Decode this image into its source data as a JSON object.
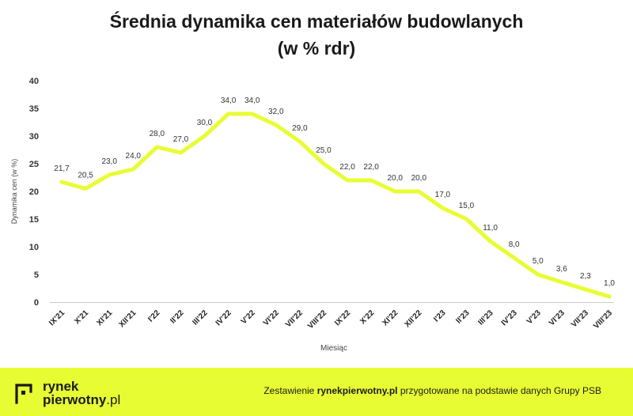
{
  "title_line1": "Średnia dynamika cen materiałów budowlanych",
  "title_line2": "(w % rdr)",
  "chart_data": {
    "type": "line",
    "title": "Średnia dynamika cen materiałów budowlanych (w % rdr)",
    "xlabel": "Miesiąc",
    "ylabel": "Dynamika cen (w %)",
    "ylim": [
      0,
      40
    ],
    "yticks": [
      0,
      5,
      10,
      15,
      20,
      25,
      30,
      35,
      40
    ],
    "grid": false,
    "legend": "none",
    "categories": [
      "IX'21",
      "X'21",
      "XI'21",
      "XII'21",
      "I'22",
      "II'22",
      "III'22",
      "IV'22",
      "V'22",
      "VI'22",
      "VII'22",
      "VIII'22",
      "IX'22",
      "X'22",
      "XI'22",
      "XII'22",
      "I'23",
      "II'23",
      "III'23",
      "IV'23",
      "V'23",
      "VI'23",
      "VII'23",
      "VIII'23"
    ],
    "series": [
      {
        "values": [
          21.7,
          20.5,
          23.0,
          24.0,
          28.0,
          27.0,
          30.0,
          34.0,
          34.0,
          32.0,
          29.0,
          25.0,
          22.0,
          22.0,
          20.0,
          20.0,
          17.0,
          15.0,
          11.0,
          8.0,
          5.0,
          3.6,
          2.3,
          1.0
        ],
        "labels": [
          "21,7",
          "20,5",
          "23,0",
          "24,0",
          "28,0",
          "27,0",
          "30,0",
          "34,0",
          "34,0",
          "32,0",
          "29,0",
          "25,0",
          "22,0",
          "22,0",
          "20,0",
          "20,0",
          "17,0",
          "15,0",
          "11,0",
          "8,0",
          "5,0",
          "3,6",
          "2,3",
          "1,0"
        ],
        "color": "#e8fc33"
      }
    ]
  },
  "footer": {
    "logo_word1": "rynek",
    "logo_word2": "pierwotny",
    "logo_suffix": ".pl",
    "credit_prefix": "Zestawienie ",
    "credit_brand": "rynekpierwotny.pl",
    "credit_suffix": " przygotowane na podstawie danych Grupy PSB",
    "background": "#e8fc33"
  }
}
